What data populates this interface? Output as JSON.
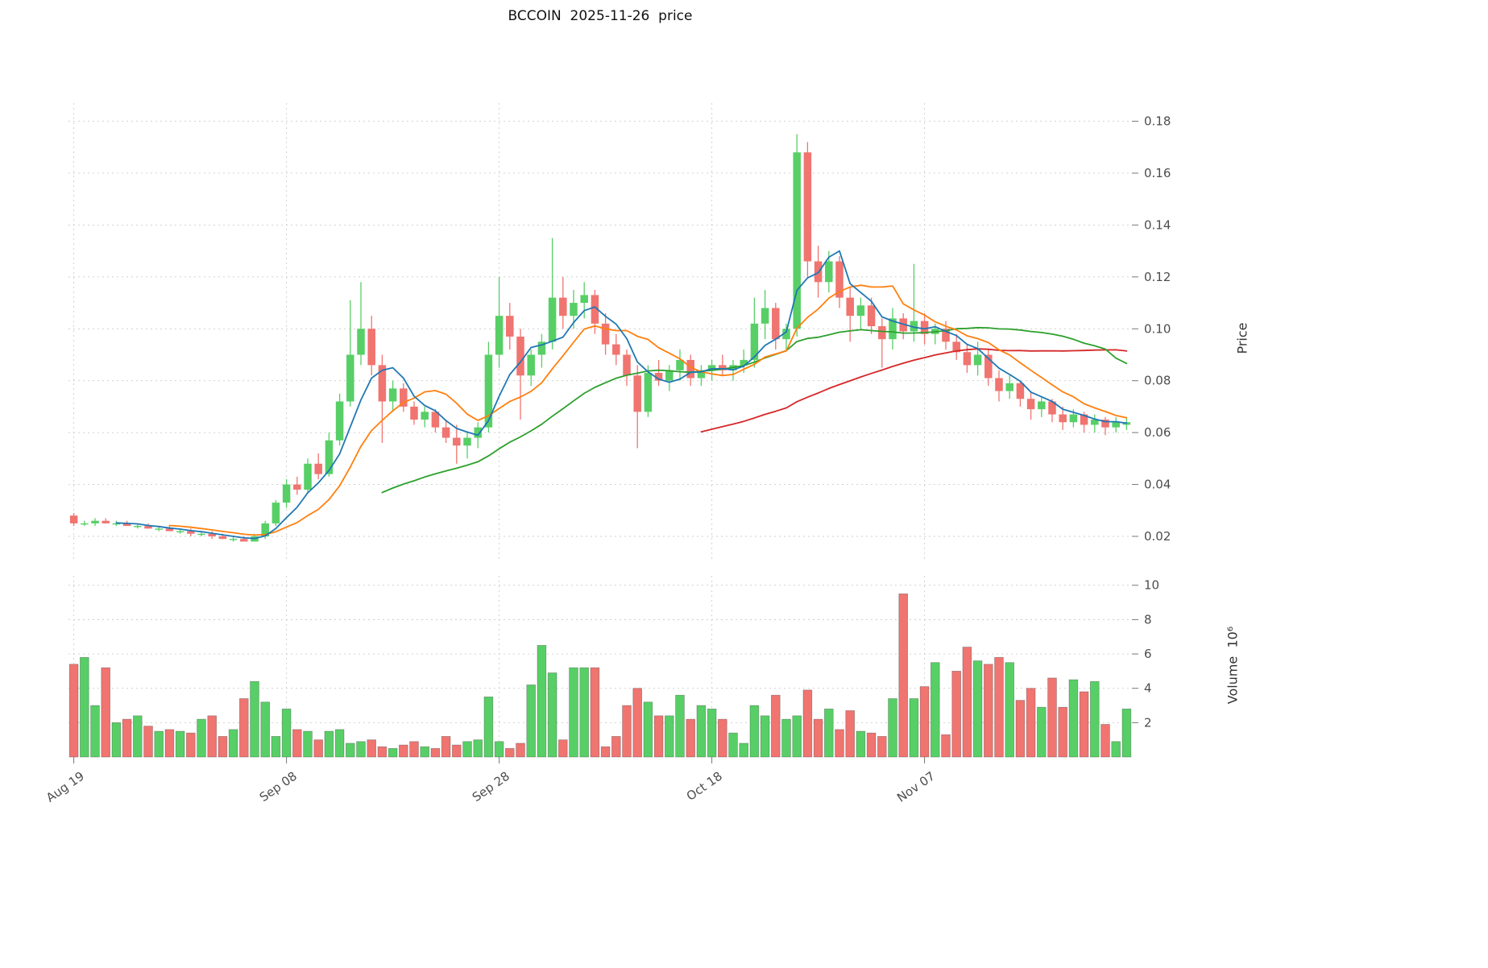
{
  "chart_data": {
    "type": "candlestick",
    "title": "BCCOIN  2025-11-26  price",
    "ylabel_price": "Price",
    "ylabel_volume": "Volume  10⁶",
    "x_ticks": {
      "indices": [
        0,
        20,
        40,
        60,
        80
      ],
      "labels": [
        "Aug 19",
        "Sep 08",
        "Sep 28",
        "Oct 18",
        "Nov 07"
      ]
    },
    "price_axis": {
      "ticks": [
        0.02,
        0.04,
        0.06,
        0.08,
        0.1,
        0.12,
        0.14,
        0.16,
        0.18
      ],
      "ylim": [
        0.011,
        0.187
      ]
    },
    "volume_axis": {
      "ticks": [
        2,
        4,
        6,
        8,
        10
      ],
      "ylim": [
        0,
        10.55
      ]
    },
    "num_points": 100,
    "candles": {
      "open": [
        0.028,
        0.025,
        0.025,
        0.026,
        0.025,
        0.025,
        0.024,
        0.024,
        0.023,
        0.023,
        0.022,
        0.022,
        0.021,
        0.021,
        0.02,
        0.019,
        0.019,
        0.018,
        0.02,
        0.025,
        0.033,
        0.04,
        0.038,
        0.048,
        0.044,
        0.057,
        0.072,
        0.09,
        0.1,
        0.086,
        0.072,
        0.077,
        0.07,
        0.065,
        0.068,
        0.062,
        0.058,
        0.055,
        0.058,
        0.062,
        0.09,
        0.105,
        0.097,
        0.082,
        0.09,
        0.095,
        0.112,
        0.105,
        0.11,
        0.113,
        0.102,
        0.094,
        0.09,
        0.082,
        0.068,
        0.083,
        0.08,
        0.084,
        0.088,
        0.081,
        0.084,
        0.086,
        0.084,
        0.086,
        0.088,
        0.102,
        0.108,
        0.096,
        0.1,
        0.168,
        0.126,
        0.118,
        0.126,
        0.112,
        0.105,
        0.109,
        0.101,
        0.096,
        0.104,
        0.099,
        0.103,
        0.098,
        0.1,
        0.095,
        0.091,
        0.086,
        0.09,
        0.081,
        0.076,
        0.079,
        0.073,
        0.069,
        0.072,
        0.067,
        0.064,
        0.067,
        0.063,
        0.065,
        0.062,
        0.063
      ],
      "high": [
        0.029,
        0.026,
        0.027,
        0.027,
        0.026,
        0.026,
        0.025,
        0.025,
        0.024,
        0.024,
        0.023,
        0.023,
        0.022,
        0.022,
        0.021,
        0.02,
        0.02,
        0.021,
        0.026,
        0.034,
        0.042,
        0.043,
        0.05,
        0.052,
        0.06,
        0.075,
        0.111,
        0.118,
        0.105,
        0.09,
        0.08,
        0.079,
        0.072,
        0.07,
        0.069,
        0.065,
        0.063,
        0.06,
        0.064,
        0.095,
        0.12,
        0.11,
        0.1,
        0.092,
        0.098,
        0.135,
        0.12,
        0.115,
        0.118,
        0.115,
        0.106,
        0.098,
        0.092,
        0.086,
        0.086,
        0.088,
        0.086,
        0.092,
        0.09,
        0.086,
        0.088,
        0.09,
        0.088,
        0.092,
        0.112,
        0.115,
        0.11,
        0.102,
        0.175,
        0.172,
        0.132,
        0.13,
        0.128,
        0.116,
        0.112,
        0.112,
        0.104,
        0.108,
        0.106,
        0.125,
        0.106,
        0.102,
        0.103,
        0.098,
        0.094,
        0.095,
        0.092,
        0.084,
        0.082,
        0.08,
        0.076,
        0.074,
        0.073,
        0.07,
        0.069,
        0.068,
        0.067,
        0.066,
        0.066,
        0.066
      ],
      "low": [
        0.024,
        0.024,
        0.024,
        0.025,
        0.024,
        0.024,
        0.023,
        0.023,
        0.022,
        0.022,
        0.021,
        0.02,
        0.02,
        0.019,
        0.019,
        0.018,
        0.018,
        0.018,
        0.019,
        0.024,
        0.031,
        0.036,
        0.037,
        0.042,
        0.043,
        0.055,
        0.07,
        0.086,
        0.082,
        0.056,
        0.068,
        0.068,
        0.063,
        0.062,
        0.06,
        0.056,
        0.048,
        0.05,
        0.054,
        0.06,
        0.085,
        0.092,
        0.065,
        0.078,
        0.085,
        0.092,
        0.1,
        0.1,
        0.104,
        0.098,
        0.09,
        0.086,
        0.078,
        0.054,
        0.066,
        0.078,
        0.076,
        0.08,
        0.078,
        0.078,
        0.08,
        0.082,
        0.08,
        0.083,
        0.085,
        0.096,
        0.092,
        0.092,
        0.097,
        0.12,
        0.112,
        0.114,
        0.108,
        0.095,
        0.1,
        0.098,
        0.085,
        0.092,
        0.096,
        0.095,
        0.094,
        0.094,
        0.092,
        0.088,
        0.083,
        0.082,
        0.078,
        0.072,
        0.073,
        0.07,
        0.065,
        0.066,
        0.064,
        0.061,
        0.062,
        0.06,
        0.06,
        0.059,
        0.06,
        0.061
      ],
      "close": [
        0.025,
        0.025,
        0.026,
        0.025,
        0.025,
        0.024,
        0.024,
        0.023,
        0.023,
        0.022,
        0.022,
        0.021,
        0.021,
        0.02,
        0.019,
        0.019,
        0.018,
        0.02,
        0.025,
        0.033,
        0.04,
        0.038,
        0.048,
        0.044,
        0.057,
        0.072,
        0.09,
        0.1,
        0.086,
        0.072,
        0.077,
        0.07,
        0.065,
        0.068,
        0.062,
        0.058,
        0.055,
        0.058,
        0.062,
        0.09,
        0.105,
        0.097,
        0.082,
        0.09,
        0.095,
        0.112,
        0.105,
        0.11,
        0.113,
        0.102,
        0.094,
        0.09,
        0.082,
        0.068,
        0.083,
        0.08,
        0.084,
        0.088,
        0.081,
        0.084,
        0.086,
        0.084,
        0.086,
        0.088,
        0.102,
        0.108,
        0.096,
        0.1,
        0.168,
        0.126,
        0.118,
        0.126,
        0.112,
        0.105,
        0.109,
        0.101,
        0.096,
        0.104,
        0.099,
        0.103,
        0.098,
        0.1,
        0.095,
        0.091,
        0.086,
        0.09,
        0.081,
        0.076,
        0.079,
        0.073,
        0.069,
        0.072,
        0.067,
        0.064,
        0.067,
        0.063,
        0.065,
        0.062,
        0.064,
        0.064
      ]
    },
    "volume": [
      5.4,
      5.8,
      3.0,
      5.2,
      2.0,
      2.2,
      2.4,
      1.8,
      1.5,
      1.6,
      1.5,
      1.4,
      2.2,
      2.4,
      1.2,
      1.6,
      3.4,
      4.4,
      3.2,
      1.2,
      2.8,
      1.6,
      1.5,
      1.0,
      1.5,
      1.6,
      0.8,
      0.9,
      1.0,
      0.6,
      0.5,
      0.7,
      0.9,
      0.6,
      0.5,
      1.2,
      0.7,
      0.9,
      1.0,
      3.5,
      0.9,
      0.5,
      0.8,
      4.2,
      6.5,
      4.9,
      1.0,
      5.2,
      5.2,
      5.2,
      0.6,
      1.2,
      3.0,
      4.0,
      3.2,
      2.4,
      2.4,
      3.6,
      2.2,
      3.0,
      2.8,
      2.2,
      1.4,
      0.8,
      3.0,
      2.4,
      3.6,
      2.2,
      2.4,
      3.9,
      2.2,
      2.8,
      1.6,
      2.7,
      1.5,
      1.4,
      1.2,
      3.4,
      9.5,
      3.4,
      4.1,
      5.5,
      1.3,
      5.0,
      6.4,
      5.6,
      5.4,
      5.8,
      5.5,
      3.3,
      4.0,
      2.9,
      4.6,
      2.9,
      4.5,
      3.8,
      4.4,
      1.9,
      0.9,
      2.8
    ],
    "moving_averages": [
      {
        "name": "sma-5",
        "window": 5,
        "color": "#1f77b4"
      },
      {
        "name": "sma-10",
        "window": 10,
        "color": "#ff7f0e"
      },
      {
        "name": "sma-30",
        "window": 30,
        "color": "#2ca02c"
      },
      {
        "name": "sma-60",
        "window": 60,
        "color": "#d62728"
      }
    ],
    "colors": {
      "up": "#57cf66",
      "down": "#f07470",
      "grid": "#cccccc",
      "tick_text": "#4d4d4d",
      "title_text": "#111111"
    }
  }
}
